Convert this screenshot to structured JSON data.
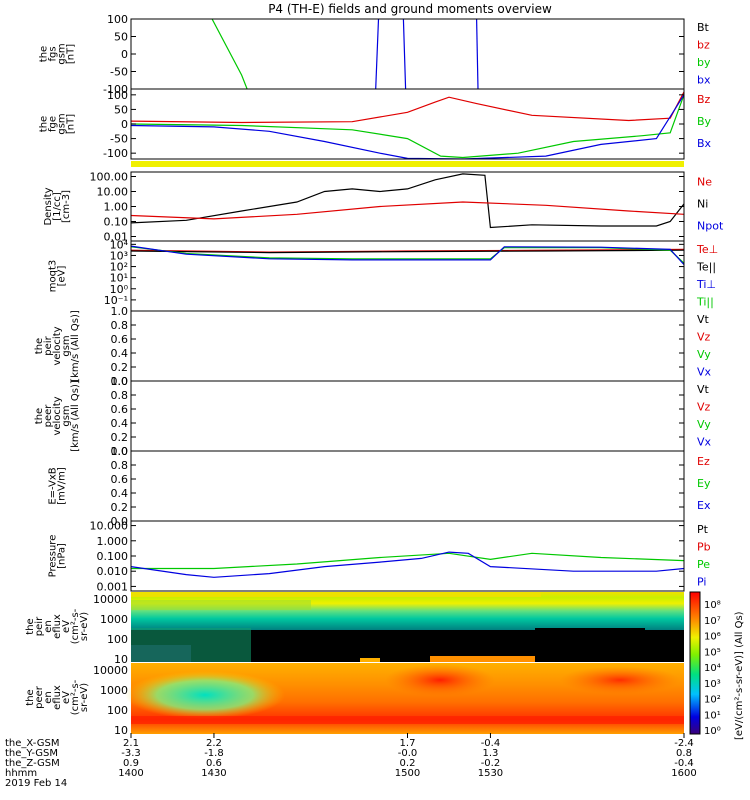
{
  "title": "P4 (TH-E) fields and ground moments overview",
  "colors": {
    "black": "#000000",
    "red": "#e00000",
    "green": "#00c800",
    "blue": "#0000e0",
    "yellow": "#f0f000"
  },
  "chart_data": [
    {
      "type": "line",
      "title": "P4 (TH-E) fields and ground moments overview",
      "ylabel": [
        "the",
        "fgs",
        "gsm",
        "[nT]"
      ],
      "ylim": [
        -100,
        100
      ],
      "yticks": [
        {
          "v": 100,
          "t": "100"
        },
        {
          "v": 50,
          "t": "50"
        },
        {
          "v": 0,
          "t": "0"
        },
        {
          "v": -50,
          "t": "-50"
        },
        {
          "v": -100,
          "t": "-100"
        }
      ],
      "series": [
        {
          "name": "Bt",
          "color": "black"
        },
        {
          "name": "bz",
          "color": "red"
        },
        {
          "name": "by",
          "color": "green"
        },
        {
          "name": "bx",
          "color": "blue"
        }
      ],
      "lines": [
        {
          "color": "green",
          "x": [
            1405,
            1428,
            1440,
            1442
          ],
          "y": [
            210,
            120,
            -60,
            -100
          ]
        },
        {
          "color": "blue",
          "x": [
            1488.5,
            1489.5
          ],
          "y": [
            -100,
            100
          ]
        },
        {
          "color": "blue",
          "x": [
            1498.5,
            1499.3
          ],
          "y": [
            100,
            -100
          ]
        },
        {
          "color": "blue",
          "x": [
            1525,
            1525.5
          ],
          "y": [
            100,
            -100
          ]
        }
      ]
    },
    {
      "type": "line",
      "ylabel": [
        "the",
        "fge",
        "gsm",
        "[nT]"
      ],
      "ylim": [
        -120,
        120
      ],
      "yticks": [
        {
          "v": 100,
          "t": "100"
        },
        {
          "v": 50,
          "t": "50"
        },
        {
          "v": 0,
          "t": "0"
        },
        {
          "v": -50,
          "t": "-50"
        },
        {
          "v": -100,
          "t": "-100"
        }
      ],
      "series": [
        {
          "name": "Bz",
          "color": "red"
        },
        {
          "name": "By",
          "color": "green"
        },
        {
          "name": "Bx",
          "color": "blue"
        }
      ],
      "lines": [
        {
          "color": "red",
          "x": [
            1400,
            1440,
            1480,
            1500,
            1510,
            1515,
            1525,
            1545,
            1580,
            1595,
            1600
          ],
          "y": [
            10,
            5,
            8,
            40,
            75,
            92,
            70,
            30,
            12,
            20,
            110
          ]
        },
        {
          "color": "green",
          "x": [
            1400,
            1440,
            1480,
            1500,
            1512,
            1520,
            1540,
            1560,
            1585,
            1595,
            1600
          ],
          "y": [
            0,
            -5,
            -20,
            -50,
            -110,
            -115,
            -100,
            -60,
            -40,
            -30,
            100
          ]
        },
        {
          "color": "blue",
          "x": [
            1400,
            1430,
            1450,
            1470,
            1490,
            1500,
            1520,
            1550,
            1570,
            1590,
            1600
          ],
          "y": [
            -5,
            -10,
            -25,
            -60,
            -100,
            -118,
            -120,
            -110,
            -70,
            -50,
            100
          ]
        }
      ]
    },
    {
      "type": "line",
      "ylabel": [
        "Density",
        "[1/cc]",
        "[cm-3]"
      ],
      "yscale": "log",
      "ylim": [
        0.005,
        200
      ],
      "yticks": [
        {
          "v": 100,
          "t": "100.00"
        },
        {
          "v": 10,
          "t": "10.00"
        },
        {
          "v": 1,
          "t": "1.00"
        },
        {
          "v": 0.1,
          "t": "0.10"
        },
        {
          "v": 0.01,
          "t": "0.01"
        }
      ],
      "series": [
        {
          "name": "Ne",
          "color": "red"
        },
        {
          "name": "Ni",
          "color": "black"
        },
        {
          "name": "Npot",
          "color": "blue"
        }
      ],
      "lines": [
        {
          "color": "black",
          "x": [
            1400,
            1420,
            1440,
            1460,
            1470,
            1480,
            1490,
            1500,
            1510,
            1520,
            1528,
            1530,
            1545,
            1570,
            1590,
            1595,
            1600
          ],
          "y": [
            0.08,
            0.12,
            0.5,
            2,
            10,
            15,
            10,
            15,
            60,
            150,
            120,
            0.04,
            0.06,
            0.05,
            0.05,
            0.1,
            1.5
          ]
        },
        {
          "color": "red",
          "x": [
            1400,
            1430,
            1460,
            1490,
            1520,
            1550,
            1580,
            1600
          ],
          "y": [
            0.25,
            0.15,
            0.3,
            1,
            2,
            1.2,
            0.5,
            0.3
          ]
        }
      ]
    },
    {
      "type": "line",
      "ylabel": [
        "moqt3",
        "[eV]"
      ],
      "yscale": "log",
      "ylim": [
        0.01,
        20000
      ],
      "yticks": [
        {
          "v": 10000,
          "t": "10⁴"
        },
        {
          "v": 1000,
          "t": "10³"
        },
        {
          "v": 100,
          "t": "10²"
        },
        {
          "v": 10,
          "t": "10¹"
        },
        {
          "v": 1,
          "t": "10⁰"
        },
        {
          "v": 0.1,
          "t": "10⁻¹"
        }
      ],
      "series": [
        {
          "name": "Te⊥",
          "color": "red"
        },
        {
          "name": "Te||",
          "color": "black"
        },
        {
          "name": "Ti⊥",
          "color": "blue"
        },
        {
          "name": "Ti||",
          "color": "green"
        }
      ],
      "lines": [
        {
          "color": "red",
          "x": [
            1400,
            1450,
            1500,
            1550,
            1600
          ],
          "y": [
            3000,
            2000,
            2500,
            3000,
            3500
          ]
        },
        {
          "color": "black",
          "x": [
            1400,
            1450,
            1500,
            1550,
            1600
          ],
          "y": [
            2500,
            1800,
            2200,
            2500,
            3000
          ]
        },
        {
          "color": "green",
          "x": [
            1400,
            1420,
            1450,
            1480,
            1530,
            1535,
            1570,
            1595,
            1600
          ],
          "y": [
            6000,
            1500,
            600,
            500,
            500,
            5000,
            5000,
            3000,
            200
          ]
        },
        {
          "color": "blue",
          "x": [
            1400,
            1420,
            1450,
            1480,
            1530,
            1535,
            1570,
            1595,
            1600
          ],
          "y": [
            7000,
            1300,
            500,
            400,
            400,
            6000,
            5500,
            3500,
            150
          ]
        }
      ]
    },
    {
      "type": "line",
      "ylabel": [
        "the",
        "peir",
        "velocity",
        "gsm",
        "[km/s (All Qs)]"
      ],
      "ylim": [
        0,
        1
      ],
      "yticks": [
        {
          "v": 1,
          "t": "1.0"
        },
        {
          "v": 0.8,
          "t": "0.8"
        },
        {
          "v": 0.6,
          "t": "0.6"
        },
        {
          "v": 0.4,
          "t": "0.4"
        },
        {
          "v": 0.2,
          "t": "0.2"
        },
        {
          "v": 0,
          "t": "0.0"
        }
      ],
      "series": [
        {
          "name": "Vt",
          "color": "black"
        },
        {
          "name": "Vz",
          "color": "red"
        },
        {
          "name": "Vy",
          "color": "green"
        },
        {
          "name": "Vx",
          "color": "blue"
        }
      ],
      "lines": []
    },
    {
      "type": "line",
      "ylabel": [
        "the",
        "peer",
        "velocity",
        "gsm",
        "[km/s (All Qs)]"
      ],
      "ylim": [
        0,
        1
      ],
      "yticks": [
        {
          "v": 1,
          "t": "1.0"
        },
        {
          "v": 0.8,
          "t": "0.8"
        },
        {
          "v": 0.6,
          "t": "0.6"
        },
        {
          "v": 0.4,
          "t": "0.4"
        },
        {
          "v": 0.2,
          "t": "0.2"
        },
        {
          "v": 0,
          "t": "0.0"
        }
      ],
      "series": [
        {
          "name": "Vt",
          "color": "black"
        },
        {
          "name": "Vz",
          "color": "red"
        },
        {
          "name": "Vy",
          "color": "green"
        },
        {
          "name": "Vx",
          "color": "blue"
        }
      ],
      "lines": []
    },
    {
      "type": "line",
      "ylabel": [
        "E=-VxB",
        "[mV/m]"
      ],
      "ylim": [
        0,
        1
      ],
      "yticks": [
        {
          "v": 1,
          "t": "1.0"
        },
        {
          "v": 0.8,
          "t": "0.8"
        },
        {
          "v": 0.6,
          "t": "0.6"
        },
        {
          "v": 0.4,
          "t": "0.4"
        },
        {
          "v": 0.2,
          "t": "0.2"
        },
        {
          "v": 0,
          "t": "0.0"
        }
      ],
      "series": [
        {
          "name": "Ez",
          "color": "red"
        },
        {
          "name": "Ey",
          "color": "green"
        },
        {
          "name": "Ex",
          "color": "blue"
        }
      ],
      "lines": []
    },
    {
      "type": "line",
      "ylabel": [
        "Pressure",
        "[nPa]"
      ],
      "yscale": "log",
      "ylim": [
        0.0005,
        20
      ],
      "yticks": [
        {
          "v": 10,
          "t": "10.000"
        },
        {
          "v": 1,
          "t": "1.000"
        },
        {
          "v": 0.1,
          "t": "0.100"
        },
        {
          "v": 0.01,
          "t": "0.010"
        },
        {
          "v": 0.001,
          "t": "0.001"
        }
      ],
      "series": [
        {
          "name": "Pt",
          "color": "black"
        },
        {
          "name": "Pb",
          "color": "red"
        },
        {
          "name": "Pe",
          "color": "green"
        },
        {
          "name": "Pi",
          "color": "blue"
        }
      ],
      "lines": [
        {
          "color": "green",
          "x": [
            1400,
            1430,
            1460,
            1490,
            1515,
            1530,
            1545,
            1570,
            1600
          ],
          "y": [
            0.015,
            0.015,
            0.03,
            0.08,
            0.15,
            0.06,
            0.15,
            0.08,
            0.05
          ]
        },
        {
          "color": "blue",
          "x": [
            1400,
            1420,
            1430,
            1450,
            1470,
            1490,
            1505,
            1515,
            1522,
            1530,
            1560,
            1590,
            1600
          ],
          "y": [
            0.02,
            0.006,
            0.004,
            0.007,
            0.02,
            0.04,
            0.07,
            0.18,
            0.15,
            0.02,
            0.01,
            0.01,
            0.015
          ]
        }
      ]
    },
    {
      "type": "heatmap",
      "ylabel": [
        "the",
        "peir",
        "en",
        "eflux",
        "eV",
        "(cm²-s-",
        "sr-eV)"
      ],
      "yscale": "log",
      "ylim": [
        7,
        25000
      ],
      "yticks": [
        {
          "v": 10000,
          "t": "10000"
        },
        {
          "v": 1000,
          "t": "1000"
        },
        {
          "v": 100,
          "t": "100"
        },
        {
          "v": 10,
          "t": "10"
        }
      ]
    },
    {
      "type": "heatmap",
      "ylabel": [
        "the",
        "peer",
        "en",
        "eflux",
        "eV",
        "(cm²-s-",
        "sr-eV)"
      ],
      "yscale": "log",
      "ylim": [
        7,
        25000
      ],
      "yticks": [
        {
          "v": 10000,
          "t": "10000"
        },
        {
          "v": 1000,
          "t": "1000"
        },
        {
          "v": 100,
          "t": "100"
        },
        {
          "v": 10,
          "t": "10"
        }
      ]
    }
  ],
  "colorbar": {
    "labels": [
      "10⁸",
      "10⁷",
      "10⁶",
      "10⁵",
      "10⁴",
      "10³",
      "10²",
      "10¹",
      "10⁰"
    ],
    "title": "[eV/(cm²-s-sr-eV)] (All Qs)"
  },
  "time_axis": {
    "start": 1400,
    "end": 1600,
    "tick_x": [
      1400,
      1430,
      1500,
      1530,
      1600
    ],
    "rows": [
      {
        "label": "the_X-GSM",
        "values": [
          "2.1",
          "2.2",
          "1.7",
          "-0.4",
          "-2.4"
        ]
      },
      {
        "label": "the_Y-GSM",
        "values": [
          "-3.3",
          "-1.8",
          "-0.0",
          "1.3",
          "0.8"
        ]
      },
      {
        "label": "the_Z-GSM",
        "values": [
          "0.9",
          "0.6",
          "0.2",
          "-0.2",
          "-0.4"
        ]
      },
      {
        "label": "hhmm",
        "values": [
          "1400",
          "1430",
          "1500",
          "1530",
          "1600"
        ]
      }
    ],
    "date": "2019 Feb 14"
  }
}
